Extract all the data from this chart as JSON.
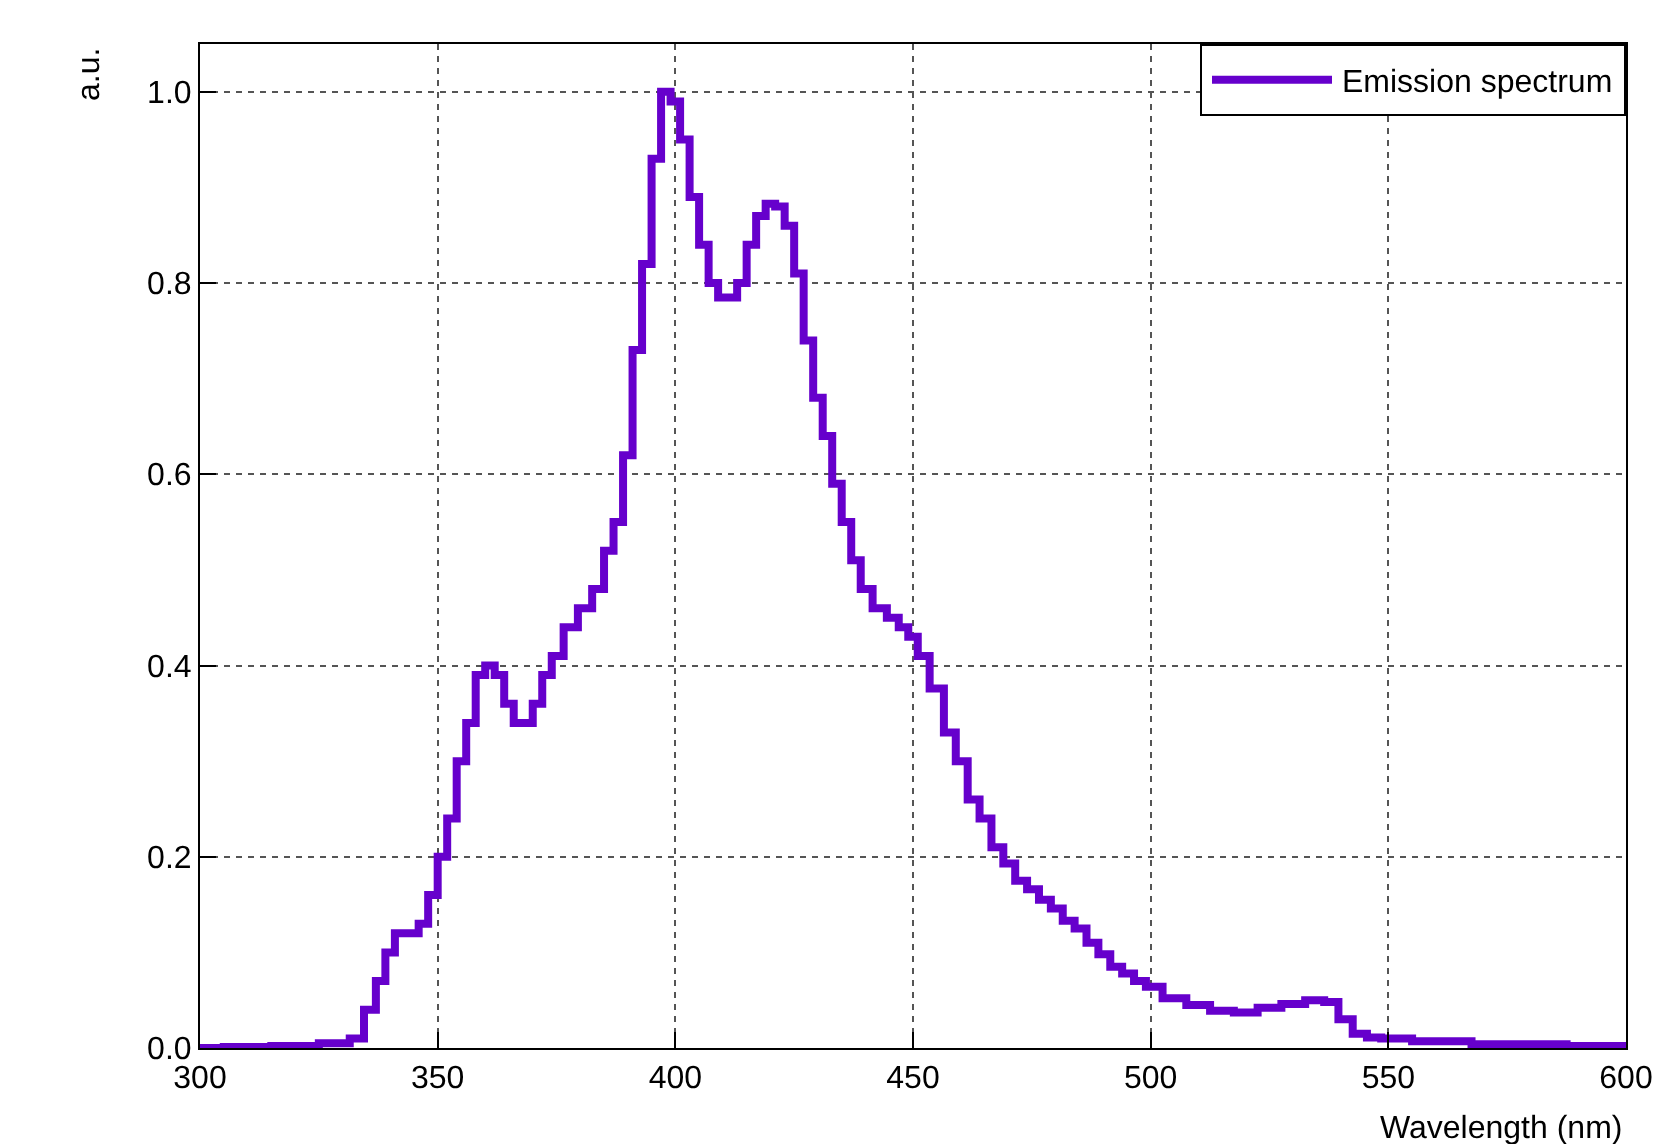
{
  "chart_data": {
    "type": "step",
    "xlabel": "Wavelength (nm)",
    "ylabel": "a.u.",
    "x": [
      300,
      310,
      320,
      330,
      333,
      336,
      338,
      340,
      342,
      345,
      347,
      349,
      351,
      353,
      355,
      357,
      359,
      361,
      363,
      365,
      367,
      369,
      371,
      373,
      375,
      378,
      381,
      384,
      386,
      388,
      390,
      392,
      394,
      396,
      398,
      400,
      402,
      404,
      406,
      408,
      410,
      412,
      414,
      416,
      418,
      420,
      422,
      424,
      426,
      428,
      430,
      432,
      434,
      436,
      438,
      440,
      443,
      446,
      448,
      450,
      452,
      455,
      458,
      460,
      463,
      465,
      468,
      470,
      473,
      475,
      478,
      480,
      483,
      485,
      488,
      490,
      493,
      495,
      498,
      500,
      505,
      510,
      515,
      520,
      525,
      530,
      535,
      538,
      541,
      544,
      547,
      550,
      560,
      575,
      600
    ],
    "series": [
      {
        "name": "Emission spectrum",
        "color": "#6600cc",
        "values": [
          0,
          0.001,
          0.002,
          0.005,
          0.01,
          0.04,
          0.07,
          0.1,
          0.12,
          0.12,
          0.13,
          0.16,
          0.2,
          0.24,
          0.3,
          0.34,
          0.39,
          0.4,
          0.39,
          0.36,
          0.34,
          0.34,
          0.36,
          0.39,
          0.41,
          0.44,
          0.46,
          0.48,
          0.52,
          0.55,
          0.62,
          0.73,
          0.82,
          0.93,
          1.0,
          0.99,
          0.95,
          0.89,
          0.84,
          0.8,
          0.785,
          0.785,
          0.8,
          0.84,
          0.87,
          0.883,
          0.88,
          0.86,
          0.81,
          0.74,
          0.68,
          0.64,
          0.59,
          0.55,
          0.51,
          0.48,
          0.46,
          0.45,
          0.44,
          0.43,
          0.41,
          0.376,
          0.33,
          0.3,
          0.26,
          0.24,
          0.21,
          0.193,
          0.175,
          0.166,
          0.155,
          0.146,
          0.133,
          0.125,
          0.11,
          0.098,
          0.085,
          0.078,
          0.07,
          0.064,
          0.052,
          0.045,
          0.039,
          0.037,
          0.042,
          0.046,
          0.05,
          0.048,
          0.03,
          0.015,
          0.011,
          0.01,
          0.007,
          0.004,
          0.002
        ]
      }
    ],
    "xlim": [
      300,
      600
    ],
    "ylim": [
      0,
      1.05
    ],
    "xticks": [
      300,
      350,
      400,
      450,
      500,
      550,
      600
    ],
    "yticks": [
      {
        "value": 0,
        "label": "0.0"
      },
      {
        "value": 0.2,
        "label": "0.2"
      },
      {
        "value": 0.4,
        "label": "0.4"
      },
      {
        "value": 0.6,
        "label": "0.6"
      },
      {
        "value": 0.8,
        "label": "0.8"
      },
      {
        "value": 1.0,
        "label": "1.0"
      }
    ],
    "grid": true,
    "legend": "top right",
    "line_style": "solid",
    "marker": "none"
  }
}
